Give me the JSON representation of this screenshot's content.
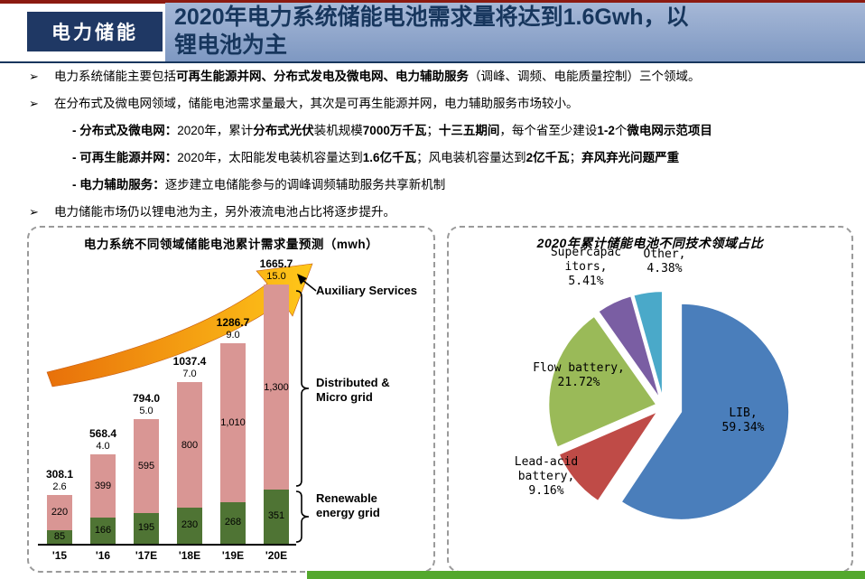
{
  "theme": {
    "top_line_color": "#8c1a11",
    "band_gradient_top": "#a6b8d7",
    "band_gradient_bottom": "#7e98c2",
    "title_text_color": "#17365d",
    "tab_bg_color": "#1f3864",
    "header_rule_color": "#17365d",
    "bottom_bar_color": "#53a82d",
    "arrow_gradient_start": "#e8700a",
    "arrow_gradient_end": "#ffc819"
  },
  "header": {
    "tab_label": "电力储能",
    "title_lines": [
      "2020年电力系统储能电池需求量将达到1.6Gwh，以",
      "锂电池为主"
    ]
  },
  "bullets": [
    {
      "marker": "➢",
      "sub": false,
      "segments": [
        {
          "t": "电力系统储能主要包括",
          "b": 0
        },
        {
          "t": "可再生能源并网、分布式发电及微电网、电力辅助服务",
          "b": 1
        },
        {
          "t": "（调峰、调频、电能质量控制）三个领域。",
          "b": 0
        }
      ]
    },
    {
      "marker": "➢",
      "sub": false,
      "segments": [
        {
          "t": "在分布式及微电网领域，储能电池需求量最大，其次是可再生能源并网，电力辅助服务市场较小。",
          "b": 0
        }
      ]
    },
    {
      "marker": "",
      "sub": true,
      "segments": [
        {
          "t": "- 分布式及微电网：",
          "b": 1
        },
        {
          "t": "2020年，累计",
          "b": 0
        },
        {
          "t": "分布式光伏",
          "b": 1
        },
        {
          "t": "装机规模",
          "b": 0
        },
        {
          "t": "7000万千瓦",
          "b": 1
        },
        {
          "t": "；",
          "b": 0
        },
        {
          "t": "十三五期间",
          "b": 1
        },
        {
          "t": "，每个省至少建设",
          "b": 0
        },
        {
          "t": "1-2",
          "b": 1
        },
        {
          "t": "个",
          "b": 0
        },
        {
          "t": "微电网示范项目",
          "b": 1
        }
      ]
    },
    {
      "marker": "",
      "sub": true,
      "segments": [
        {
          "t": "- 可再生能源并网：",
          "b": 1
        },
        {
          "t": "2020年，太阳能发电装机容量达到",
          "b": 0
        },
        {
          "t": "1.6亿千瓦",
          "b": 1
        },
        {
          "t": "；风电装机容量达到",
          "b": 0
        },
        {
          "t": "2亿千瓦",
          "b": 1
        },
        {
          "t": "；",
          "b": 0
        },
        {
          "t": "弃风弃光问题严重",
          "b": 1
        }
      ]
    },
    {
      "marker": "",
      "sub": true,
      "segments": [
        {
          "t": "- 电力辅助服务：",
          "b": 1
        },
        {
          "t": "逐步建立电储能参与的调峰调频辅助服务共享新机制",
          "b": 0
        }
      ]
    },
    {
      "marker": "➢",
      "sub": false,
      "segments": [
        {
          "t": "电力储能市场仍以锂电池为主，另外液流电池占比将逐步提升。",
          "b": 0
        }
      ]
    }
  ],
  "chart_data": [
    {
      "type": "bar",
      "title": "电力系统不同领域储能电池累计需求量预测（mwh）",
      "categories": [
        "'15",
        "'16",
        "'17E",
        "'18E",
        "'19E",
        "'20E"
      ],
      "series": [
        {
          "name": "Renewable energy grid",
          "color": "#4f7434",
          "values": [
            85,
            166,
            195,
            230,
            268,
            351
          ],
          "labels": [
            "85",
            "166",
            "195",
            "230",
            "268",
            "351"
          ]
        },
        {
          "name": "Distributed & Micro grid",
          "color": "#d99694",
          "values": [
            220,
            399,
            595,
            800,
            1010,
            1300
          ],
          "labels": [
            "220",
            "399",
            "595",
            "800",
            "1,010",
            "1,300"
          ]
        },
        {
          "name": "Auxiliary Services",
          "color": "#d99694",
          "values": [
            2.6,
            4.0,
            5.0,
            7.0,
            9.0,
            15.0
          ],
          "labels": [
            "2.6",
            "4.0",
            "5.0",
            "7.0",
            "9.0",
            "15.0"
          ]
        }
      ],
      "totals": [
        "308.1",
        "568.4",
        "794.0",
        "1037.4",
        "1286.7",
        "1665.7"
      ],
      "ylim": [
        0,
        1700
      ],
      "stacked": true,
      "annotations": {
        "aux": "Auxiliary Services",
        "dist": [
          "Distributed &",
          "Micro grid"
        ],
        "renew": [
          "Renewable",
          "energy grid"
        ]
      }
    },
    {
      "type": "pie",
      "title": "2020年累计储能电池不同技术领域占比",
      "slices": [
        {
          "label": "LIB",
          "pct": 59.34,
          "color": "#4a7ebb",
          "label_lines": [
            "LIB,",
            "59.34%"
          ]
        },
        {
          "label": "Lead-acid battery",
          "pct": 9.16,
          "color": "#bf4b47",
          "label_lines": [
            "Lead-acid",
            "battery,",
            "9.16%"
          ]
        },
        {
          "label": "Flow battery",
          "pct": 21.72,
          "color": "#9aba58",
          "label_lines": [
            "Flow battery,",
            "21.72%"
          ]
        },
        {
          "label": "Supercapacitors",
          "pct": 5.41,
          "color": "#7a5ea3",
          "label_lines": [
            "Supercapac",
            "itors,",
            "5.41%"
          ]
        },
        {
          "label": "Other",
          "pct": 4.38,
          "color": "#4aa9c9",
          "label_lines": [
            "Other,",
            "4.38%"
          ]
        }
      ]
    }
  ]
}
